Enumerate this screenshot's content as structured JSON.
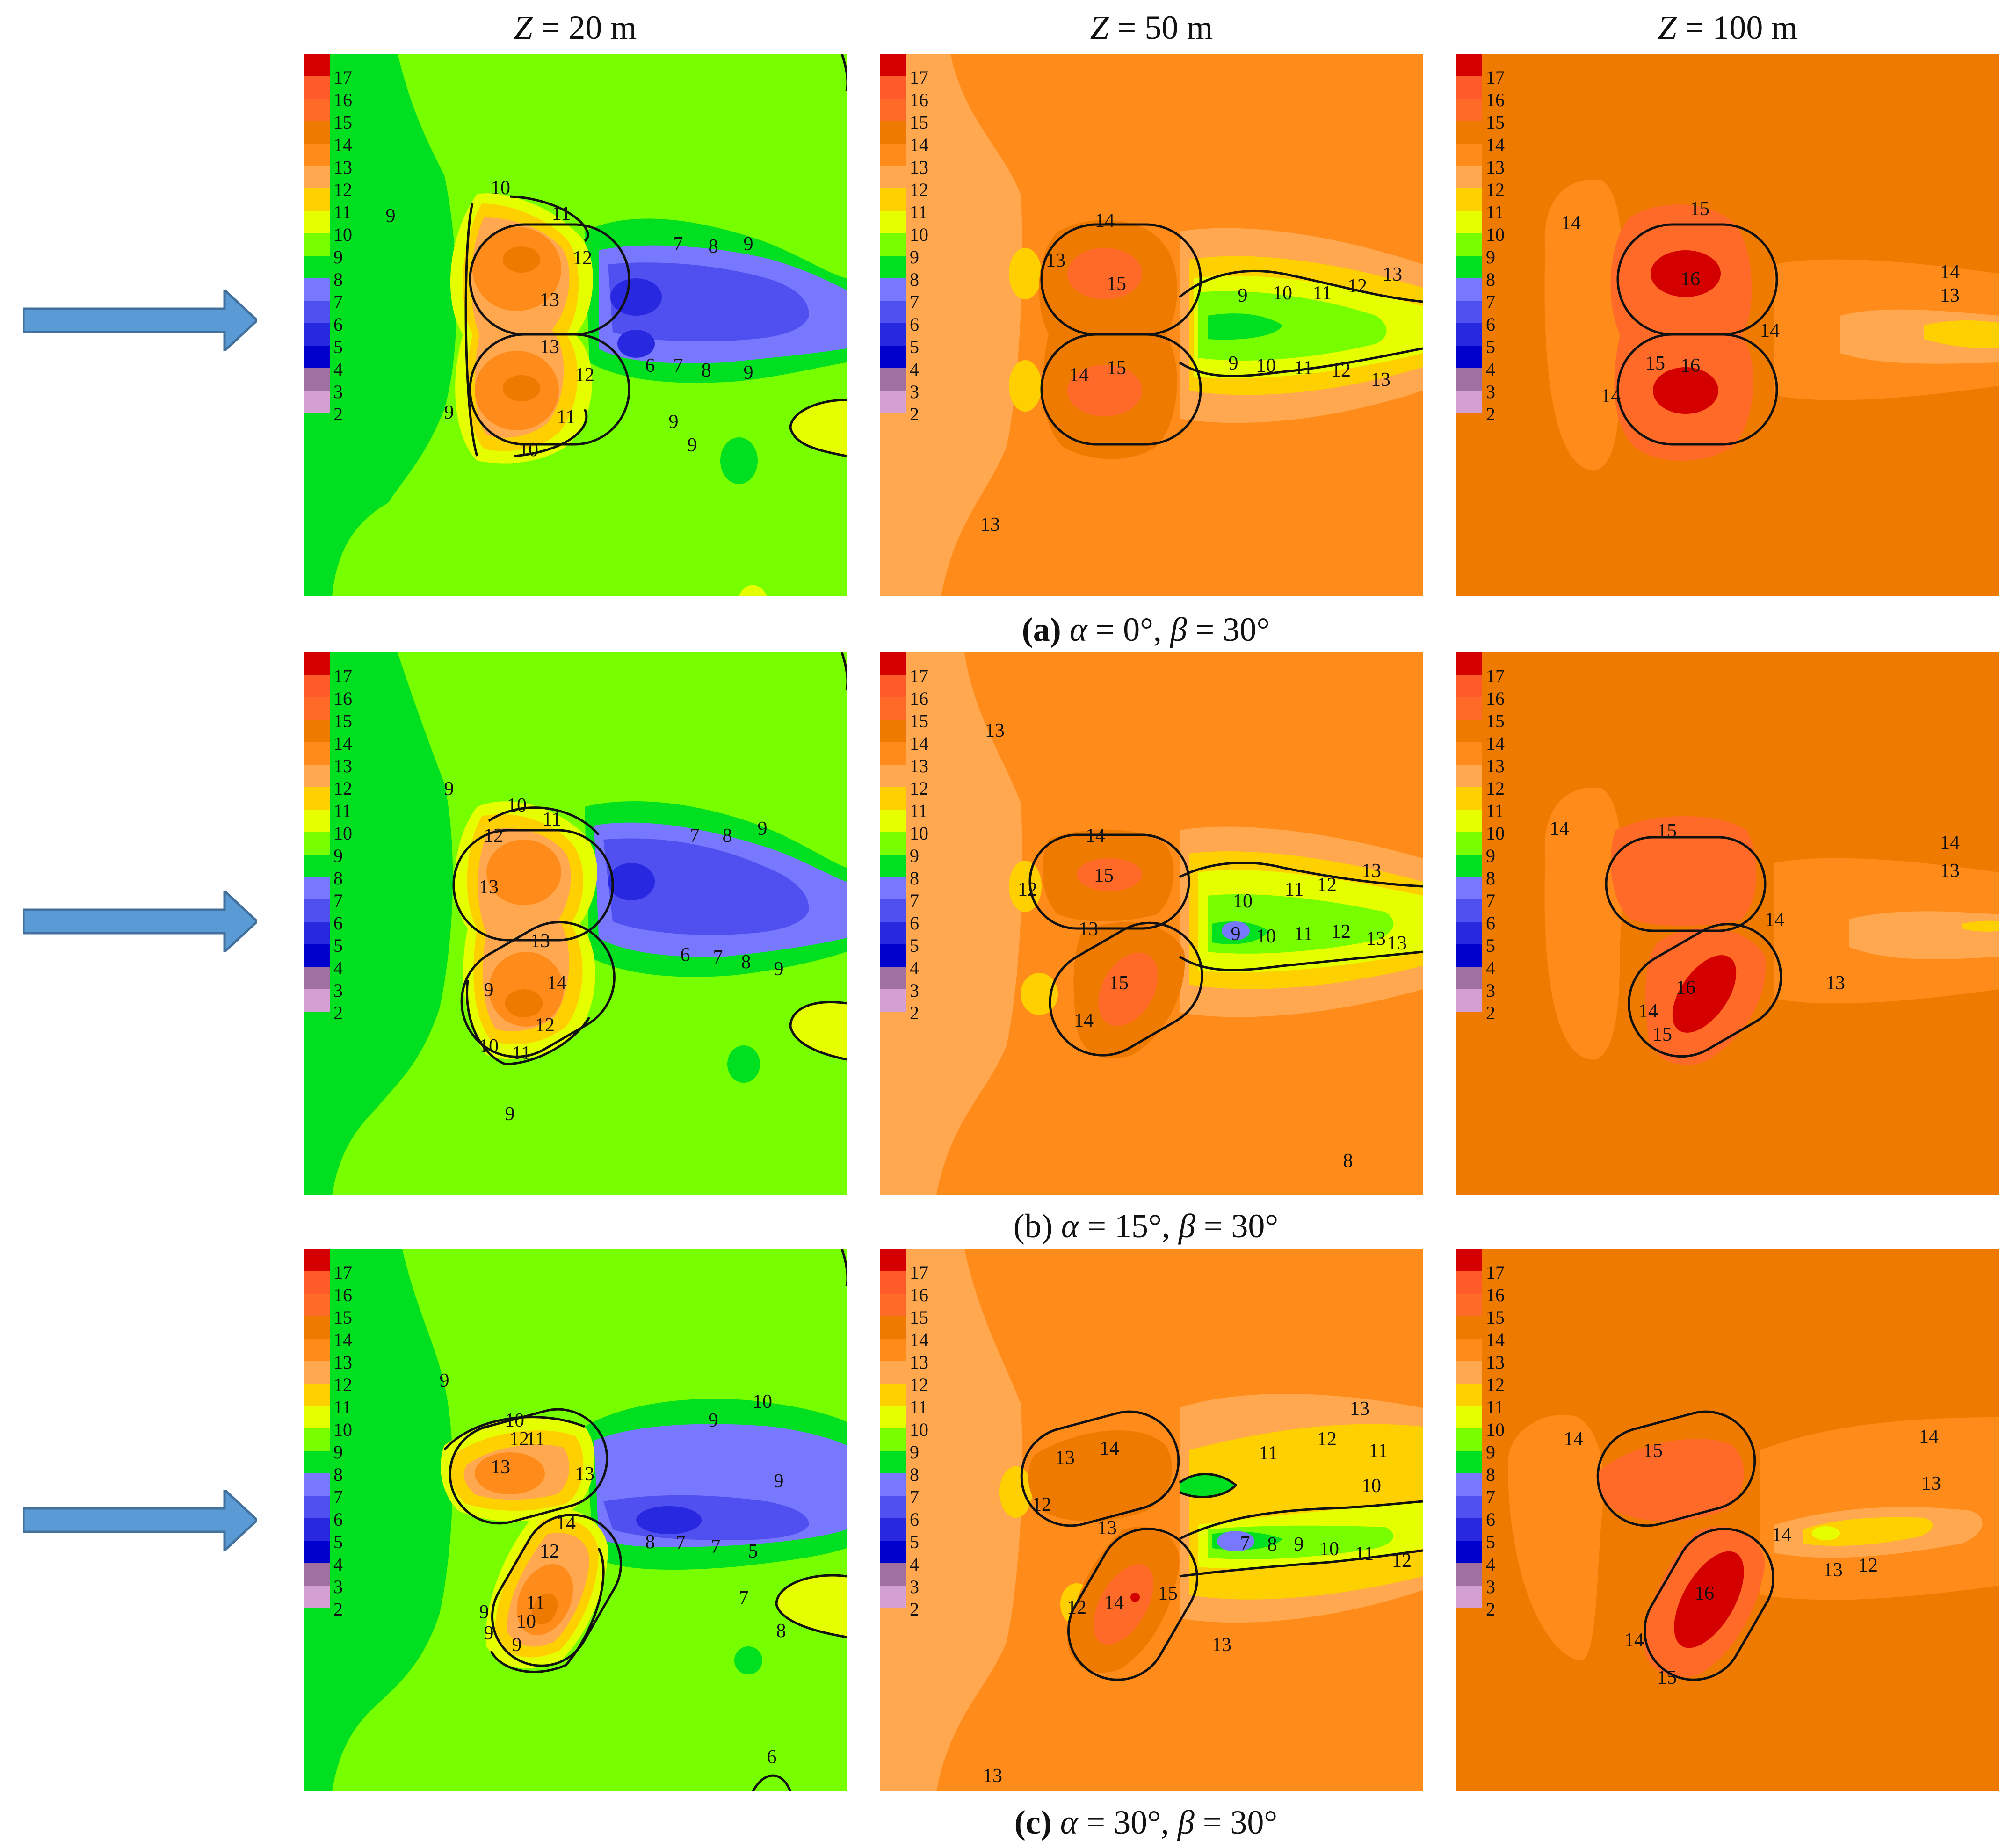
{
  "column_headers": [
    {
      "var": "Z",
      "rest": " = 20 m"
    },
    {
      "var": "Z",
      "rest": " = 50 m"
    },
    {
      "var": "Z",
      "rest": " = 100 m"
    }
  ],
  "row_captions": [
    {
      "tag": "(a)",
      "text_parts": [
        "α",
        " = 0°, ",
        "β",
        " = 30°"
      ],
      "bold": true
    },
    {
      "tag": "(b)",
      "text_parts": [
        "α",
        " = 15°, ",
        "β",
        " = 30°"
      ],
      "bold": false
    },
    {
      "tag": "(c)",
      "text_parts": [
        "α",
        " = 30°, ",
        "β",
        " = 30°"
      ],
      "bold": false
    }
  ],
  "colorbar": {
    "levels": [
      "17",
      "16",
      "15",
      "14",
      "13",
      "12",
      "11",
      "10",
      "9",
      "8",
      "7",
      "6",
      "5",
      "4",
      "3",
      "2"
    ],
    "colors": [
      "#d40000",
      "#ff5a2a",
      "#ff6a28",
      "#ee7a00",
      "#ff8c1a",
      "#ffa850",
      "#ffd000",
      "#e6ff00",
      "#77ff00",
      "#00e020",
      "#7878ff",
      "#5050f0",
      "#2828e0",
      "#0000cc",
      "#a070a0",
      "#d4a0d4"
    ]
  },
  "colors": {
    "v9": "#77ff00",
    "v8": "#00e020",
    "v7": "#7878ff",
    "v6": "#5050f0",
    "v5": "#2828e0",
    "v10": "#e6ff00",
    "v11": "#ffd000",
    "v12": "#ffa850",
    "v13": "#ff8c1a",
    "v14": "#ee7a00",
    "v15": "#ff6a28",
    "v16": "#ff5a2a",
    "v17": "#d40000",
    "arrow": "#5b9bd5",
    "arrow_edge": "#41719c"
  },
  "chart_data": [
    {
      "type": "contour",
      "row": "(a)",
      "panels": [
        {
          "height": "Z = 20 m",
          "background_level": 9,
          "wake_min_level": 5,
          "contour_labels": [
            "9",
            "10",
            "11",
            "12",
            "13",
            "13",
            "12",
            "11",
            "10",
            "7",
            "8",
            "9",
            "6",
            "7",
            "8",
            "9",
            "9",
            "9",
            "9"
          ]
        },
        {
          "height": "Z = 50 m",
          "background_level": 13,
          "wake_min_level": 9,
          "contour_labels": [
            "14",
            "13",
            "15",
            "15",
            "14",
            "9",
            "10",
            "11",
            "12",
            "13",
            "9",
            "10",
            "11",
            "12",
            "13",
            "13"
          ]
        },
        {
          "height": "Z = 100 m",
          "background_level": 14,
          "peak_level": 16,
          "contour_labels": [
            "14",
            "15",
            "16",
            "16",
            "15",
            "14",
            "14",
            "14",
            "13"
          ]
        }
      ]
    },
    {
      "type": "contour",
      "row": "(b)",
      "panels": [
        {
          "height": "Z = 20 m",
          "background_level": 9,
          "wake_min_level": 5,
          "contour_labels": [
            "9",
            "10",
            "11",
            "12",
            "13",
            "13",
            "14",
            "12",
            "11",
            "10",
            "9",
            "7",
            "8",
            "9",
            "6",
            "7",
            "8",
            "9",
            "9"
          ]
        },
        {
          "height": "Z = 50 m",
          "background_level": 13,
          "wake_min_level": 8,
          "contour_labels": [
            "13",
            "14",
            "15",
            "12",
            "13",
            "15",
            "14",
            "10",
            "11",
            "12",
            "13",
            "8",
            "9",
            "10",
            "11",
            "12",
            "13",
            "13"
          ]
        },
        {
          "height": "Z = 100 m",
          "background_level": 14,
          "peak_level": 16,
          "contour_labels": [
            "14",
            "15",
            "14",
            "13",
            "16",
            "14",
            "14",
            "15",
            "13"
          ]
        }
      ]
    },
    {
      "type": "contour",
      "row": "(c)",
      "panels": [
        {
          "height": "Z = 20 m",
          "background_level": 9,
          "wake_min_level": 5,
          "contour_labels": [
            "9",
            "10",
            "11",
            "12",
            "13",
            "13",
            "14",
            "12",
            "11",
            "10",
            "9",
            "9",
            "9",
            "8",
            "7",
            "7",
            "5",
            "6",
            "7",
            "8",
            "9",
            "10",
            "9"
          ]
        },
        {
          "height": "Z = 50 m",
          "background_level": 13,
          "wake_min_level": 7,
          "contour_labels": [
            "13",
            "12",
            "11",
            "14",
            "13",
            "12",
            "13",
            "14",
            "15",
            "12",
            "11",
            "10",
            "7",
            "8",
            "9",
            "10",
            "11",
            "12",
            "13",
            "13"
          ]
        },
        {
          "height": "Z = 100 m",
          "background_level": 14,
          "peak_level": 16,
          "contour_labels": [
            "14",
            "15",
            "14",
            "13",
            "12",
            "13",
            "14",
            "16",
            "15",
            "14"
          ]
        }
      ]
    }
  ]
}
